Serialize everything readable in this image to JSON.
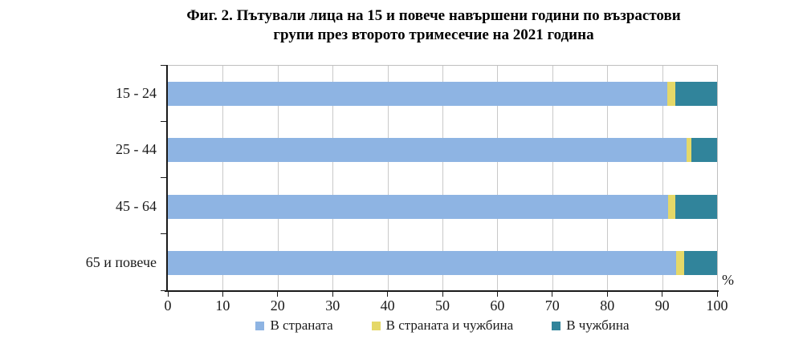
{
  "title_lines": [
    "Фиг. 2. Пътували лица на 15 и повече навършени години по възрастови",
    "групи през второто тримесечие на 2021 година"
  ],
  "chart_data": {
    "type": "bar",
    "orientation": "horizontal",
    "stacked": true,
    "title": "Фиг. 2. Пътували лица на 15 и повече навършени години по възрастови групи през второто тримесечие на 2021 година",
    "categories": [
      "15 - 24",
      "25 - 44",
      "45 - 64",
      "65 и повече"
    ],
    "series": [
      {
        "name": "В страната",
        "color": "#8EB4E3",
        "values": [
          91.0,
          94.4,
          91.1,
          92.6
        ]
      },
      {
        "name": "В страната  и чужбина",
        "color": "#E5D868",
        "values": [
          1.4,
          0.9,
          1.3,
          1.4
        ]
      },
      {
        "name": "В чужбина",
        "color": "#31849B",
        "values": [
          7.6,
          4.7,
          7.6,
          6.0
        ]
      }
    ],
    "x_axis": {
      "min": 0,
      "max": 100,
      "tick_step": 10,
      "tick_labels": [
        "0",
        "10",
        "20",
        "30",
        "40",
        "50",
        "60",
        "70",
        "80",
        "90",
        "100"
      ],
      "unit_label": "%"
    },
    "grid": true,
    "legend_position": "bottom"
  },
  "colors": {
    "grid": "#C9C9C9",
    "plot_border": "#BFBFBF",
    "axis": "#1A1A1A",
    "title_text": "#000000"
  }
}
